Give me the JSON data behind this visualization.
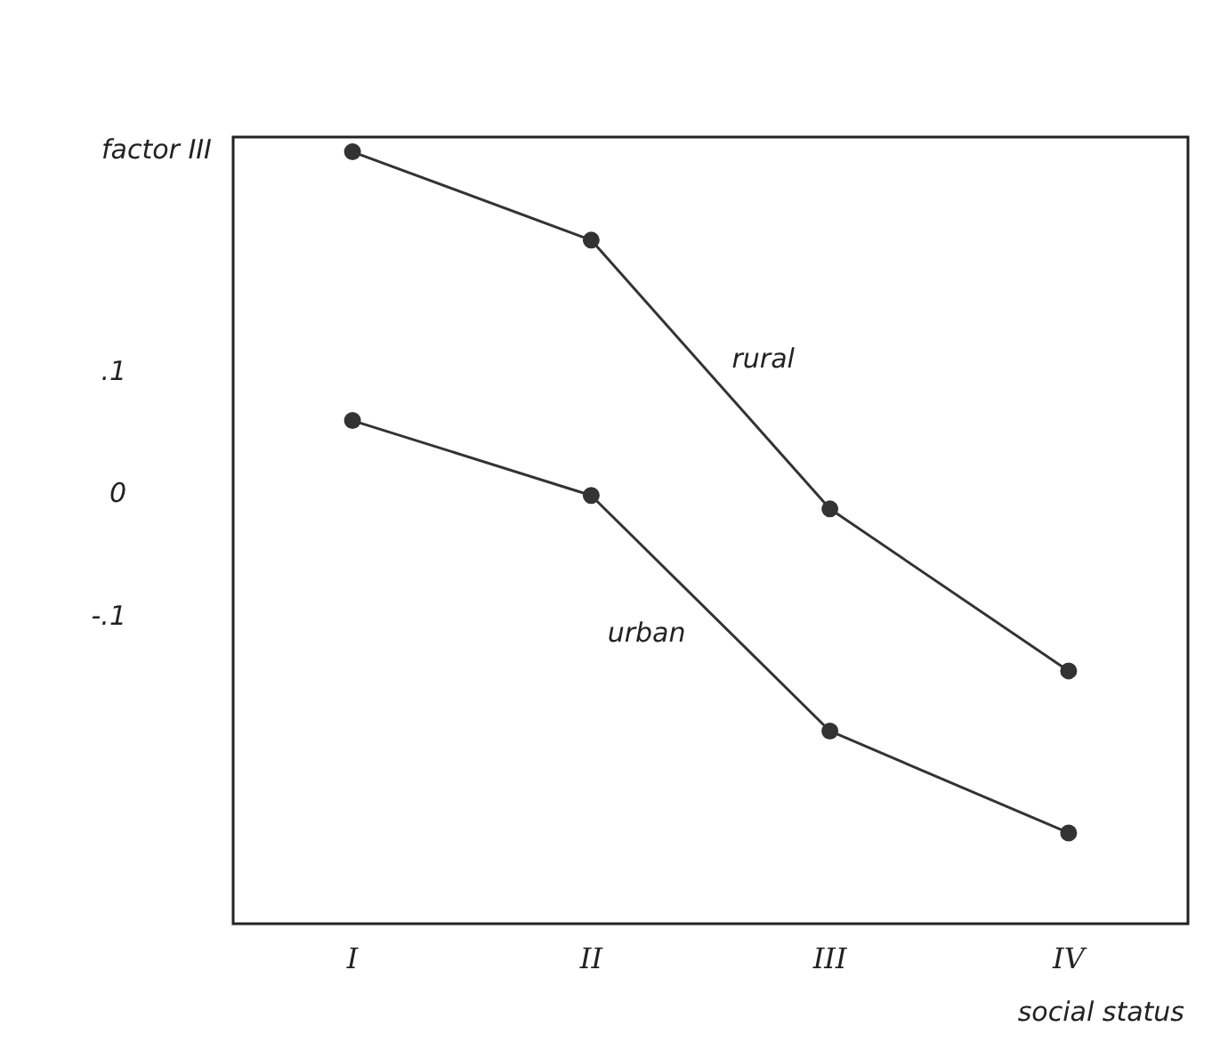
{
  "chart_data": {
    "type": "line",
    "xlabel": "social status",
    "ylabel": "factor III",
    "categories": [
      "I",
      "II",
      "III",
      "IV"
    ],
    "series": [
      {
        "name": "rural",
        "color": "#333333",
        "values": [
          0.28,
          0.208,
          -0.011,
          -0.143
        ]
      },
      {
        "name": "urban",
        "color": "#333333",
        "values": [
          0.061,
          0,
          -0.192,
          -0.275
        ]
      }
    ],
    "ylim": [
      -0.349,
      0.292
    ],
    "yticks": [
      {
        "value": -0.1,
        "label": "-.1"
      },
      0,
      {
        "value": 0.1,
        "label": ".1"
      }
    ],
    "grid": false,
    "legend": false,
    "marker": "circle",
    "line_style": "solid"
  }
}
